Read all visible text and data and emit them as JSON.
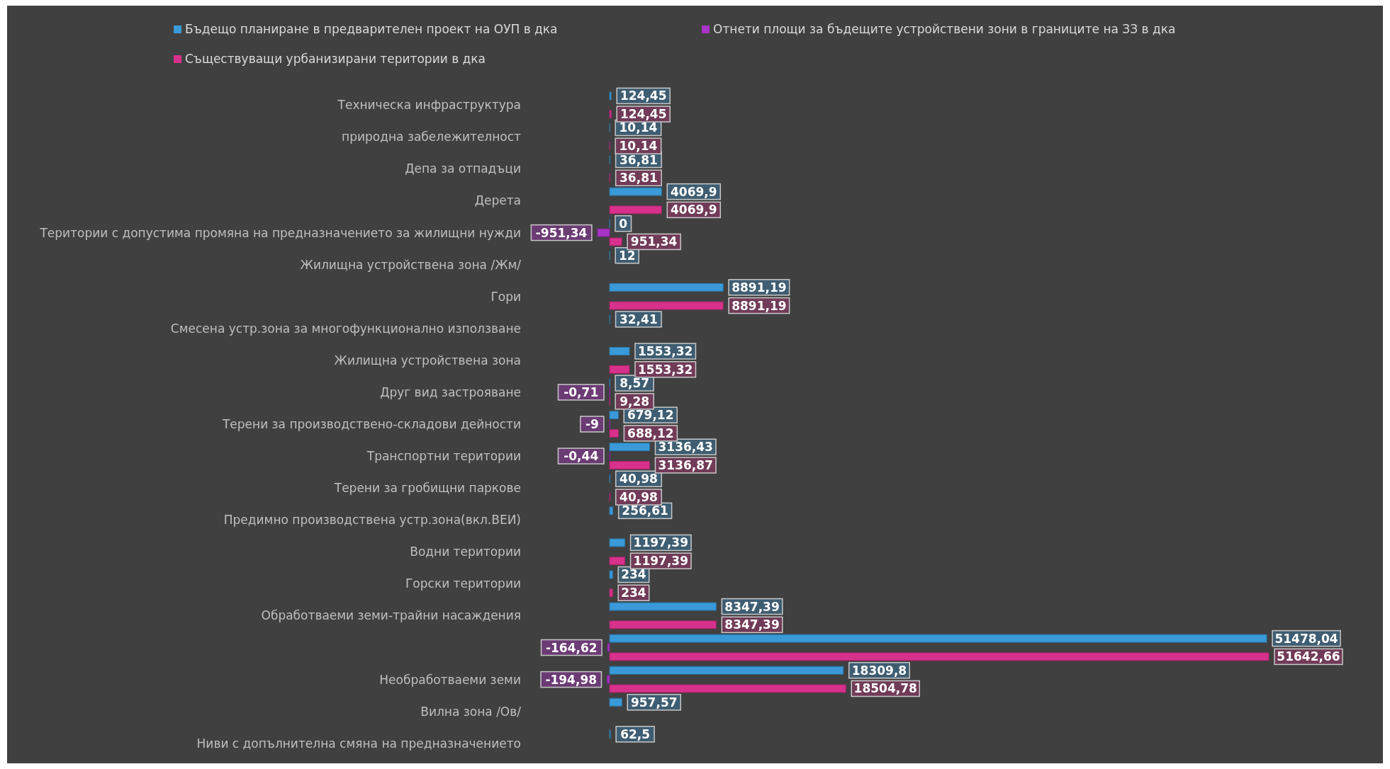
{
  "chart_data": {
    "type": "bar",
    "orientation": "horizontal",
    "data_labels": true,
    "legend": "top",
    "categories": [
      "Техническа инфраструктура",
      "природна забележителност",
      "Депа за отпадъци",
      "Дерета",
      "Територии с допустима промяна на предназначението за жилищни нужди",
      "Жилищна устройствена зона /Жм/",
      "Гори",
      "Смесена устр.зона за многофункционално  използване",
      "Жилищна устройствена зона",
      "Друг вид застрояване",
      "Терени за производствено-складови дейности",
      "Транспортни територии",
      "Терени за гробищни паркове",
      "Предимно производствена устр.зона(вкл.ВЕИ)",
      "Водни територии",
      "Горски територии",
      "Обработваеми земи-трайни насаждения",
      null,
      "Необработваеми земи",
      "Вилна зона /Ов/",
      "Ниви с допълнителна смяна на предназначението"
    ],
    "series": [
      {
        "name": "Бъдещо планиране в предварителен проект на ОУП в дка",
        "color": "#3a9ad9",
        "values": [
          124.45,
          10.14,
          36.81,
          4069.9,
          0,
          12,
          8891.19,
          32.41,
          1553.32,
          8.57,
          679.12,
          3136.43,
          40.98,
          256.61,
          1197.39,
          234,
          8347.39,
          51478.04,
          18309.8,
          957.57,
          62.5
        ],
        "value_labels": [
          "124,45",
          "10,14",
          "36,81",
          "4069,9",
          "0",
          "12",
          "8891,19",
          "32,41",
          "1553,32",
          "8,57",
          "679,12",
          "3136,43",
          "40,98",
          "256,61",
          "1197,39",
          "234",
          "8347,39",
          "51478,04",
          "18309,8",
          "957,57",
          "62,5"
        ]
      },
      {
        "name": "Отнети площи за бъдещите устройствени зони в границите на ЗЗ в дка",
        "color": "#a933c4",
        "values": [
          null,
          null,
          null,
          null,
          -951.34,
          null,
          null,
          null,
          null,
          -0.71,
          -9,
          -0.44,
          null,
          null,
          null,
          null,
          null,
          -164.62,
          -194.98,
          null,
          null
        ],
        "value_labels": [
          null,
          null,
          null,
          null,
          "-951,34",
          null,
          null,
          null,
          null,
          "-0,71",
          "-9",
          "-0,44",
          null,
          null,
          null,
          null,
          null,
          "-164,62",
          "-194,98",
          null,
          null
        ]
      },
      {
        "name": "Съществуващи урбанизирани територии в дка",
        "color": "#d8318c",
        "values": [
          124.45,
          10.14,
          36.81,
          4069.9,
          951.34,
          null,
          8891.19,
          null,
          1553.32,
          9.28,
          688.12,
          3136.87,
          40.98,
          null,
          1197.39,
          234,
          8347.39,
          51642.66,
          18504.78,
          null,
          null
        ],
        "value_labels": [
          "124,45",
          "10,14",
          "36,81",
          "4069,9",
          "951,34",
          null,
          "8891,19",
          null,
          "1553,32",
          "9,28",
          "688,12",
          "3136,87",
          "40,98",
          null,
          "1197,39",
          "234",
          "8347,39",
          "51642,66",
          "18504,78",
          null,
          null
        ]
      }
    ]
  }
}
